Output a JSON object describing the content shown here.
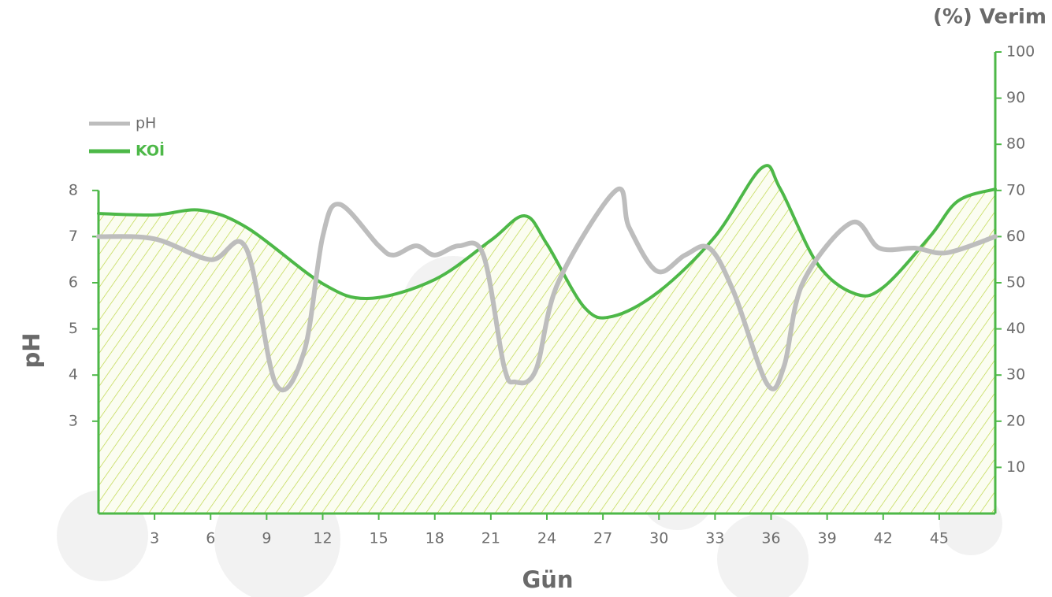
{
  "chart_data": {
    "type": "line",
    "x_label": "Gün",
    "y_label": "pH",
    "y2_label": "(%) Verim",
    "xlim": [
      0,
      48
    ],
    "xticks": [
      3,
      6,
      9,
      12,
      15,
      18,
      21,
      24,
      27,
      30,
      33,
      36,
      39,
      42,
      45
    ],
    "ylim": [
      1,
      11
    ],
    "yticks": [
      3,
      4,
      5,
      6,
      7,
      8
    ],
    "y2lim": [
      0,
      100
    ],
    "y2ticks": [
      10,
      20,
      30,
      40,
      50,
      60,
      70,
      80,
      90,
      100
    ],
    "legend": "upper left",
    "axis_color": "#4db848",
    "series": [
      {
        "name": "pH",
        "color": "#bdbdbd",
        "x": [
          0,
          3,
          6,
          7.9,
          9.5,
          11,
          12,
          12.9,
          15,
          15.8,
          17,
          18,
          19.3,
          20.6,
          21.7,
          22.3,
          23.4,
          24.6,
          27.7,
          28.4,
          29.9,
          31.4,
          32.7,
          34,
          35.8,
          36.7,
          37.7,
          40.3,
          41.8,
          43.7,
          45.4,
          48
        ],
        "values": [
          7.0,
          6.95,
          6.5,
          6.75,
          3.8,
          4.5,
          7.0,
          7.7,
          6.8,
          6.6,
          6.8,
          6.6,
          6.8,
          6.6,
          4.2,
          3.85,
          4.1,
          6.0,
          8.0,
          7.2,
          6.25,
          6.6,
          6.75,
          5.8,
          3.8,
          4.2,
          6.0,
          7.3,
          6.75,
          6.75,
          6.65,
          7.0
        ]
      },
      {
        "name": "KOİ",
        "color": "#4db848",
        "axis": "y2",
        "fill": true,
        "x": [
          0,
          3,
          5.5,
          8,
          12,
          14.5,
          18,
          21,
          22.8,
          24,
          26,
          27.5,
          30,
          33,
          35.5,
          36.5,
          38.5,
          40.5,
          42,
          44.5,
          46,
          48
        ],
        "values": [
          65,
          64.7,
          65.7,
          61.8,
          49.8,
          46.6,
          50.7,
          59.2,
          64.5,
          58.4,
          44.7,
          42.7,
          48.1,
          60,
          74.9,
          70.3,
          54,
          47.6,
          49,
          60,
          67.7,
          70.3
        ]
      }
    ]
  }
}
